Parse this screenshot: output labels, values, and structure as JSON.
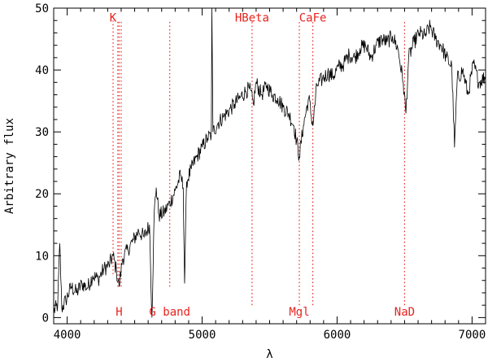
{
  "chart_data": {
    "type": "line",
    "title": "",
    "xlabel": "λ",
    "ylabel": "Arbitrary flux",
    "xlim": [
      3900,
      7100
    ],
    "ylim": [
      -1,
      50
    ],
    "x_ticks": [
      4000,
      5000,
      6000,
      7000
    ],
    "x_tick_labels": [
      "4000",
      "5000",
      "6000",
      "7000"
    ],
    "y_ticks": [
      0,
      10,
      20,
      30,
      40,
      50
    ],
    "y_tick_labels": [
      "0",
      "10",
      "20",
      "30",
      "40",
      "50"
    ],
    "grid": false,
    "series": [
      {
        "color": "#000000",
        "points": [
          [
            3900,
            1.0
          ],
          [
            3930,
            2.0
          ],
          [
            3945,
            12.0
          ],
          [
            3960,
            1.5
          ],
          [
            3990,
            2.8
          ],
          [
            4030,
            5.0
          ],
          [
            4070,
            4.0
          ],
          [
            4110,
            5.5
          ],
          [
            4150,
            4.8
          ],
          [
            4190,
            6.8
          ],
          [
            4230,
            6.2
          ],
          [
            4270,
            7.8
          ],
          [
            4310,
            8.5
          ],
          [
            4340,
            10.0
          ],
          [
            4365,
            7.5
          ],
          [
            4385,
            5.0
          ],
          [
            4410,
            9.5
          ],
          [
            4450,
            11.0
          ],
          [
            4490,
            12.5
          ],
          [
            4530,
            14.0
          ],
          [
            4570,
            13.0
          ],
          [
            4610,
            15.0
          ],
          [
            4628,
            0.0
          ],
          [
            4645,
            17.0
          ],
          [
            4660,
            21.0
          ],
          [
            4680,
            16.5
          ],
          [
            4720,
            17.0
          ],
          [
            4760,
            18.5
          ],
          [
            4800,
            20.5
          ],
          [
            4840,
            23.0
          ],
          [
            4860,
            21.0
          ],
          [
            4870,
            5.5
          ],
          [
            4885,
            22.0
          ],
          [
            4920,
            24.0
          ],
          [
            4960,
            26.0
          ],
          [
            5000,
            27.5
          ],
          [
            5040,
            29.0
          ],
          [
            5068,
            29.5
          ],
          [
            5072,
            50.0
          ],
          [
            5080,
            30.0
          ],
          [
            5120,
            31.5
          ],
          [
            5160,
            32.5
          ],
          [
            5200,
            33.5
          ],
          [
            5240,
            34.5
          ],
          [
            5280,
            35.5
          ],
          [
            5320,
            36.5
          ],
          [
            5350,
            37.0
          ],
          [
            5380,
            34.5
          ],
          [
            5400,
            38.0
          ],
          [
            5440,
            36.0
          ],
          [
            5480,
            37.5
          ],
          [
            5520,
            36.0
          ],
          [
            5560,
            35.5
          ],
          [
            5600,
            34.0
          ],
          [
            5640,
            33.0
          ],
          [
            5680,
            31.0
          ],
          [
            5720,
            26.0
          ],
          [
            5750,
            31.0
          ],
          [
            5790,
            35.5
          ],
          [
            5820,
            31.0
          ],
          [
            5850,
            37.5
          ],
          [
            5890,
            38.5
          ],
          [
            5930,
            39.5
          ],
          [
            5970,
            39.0
          ],
          [
            6010,
            40.5
          ],
          [
            6050,
            41.0
          ],
          [
            6090,
            42.5
          ],
          [
            6130,
            42.0
          ],
          [
            6170,
            43.5
          ],
          [
            6210,
            44.0
          ],
          [
            6250,
            42.0
          ],
          [
            6290,
            44.0
          ],
          [
            6330,
            45.0
          ],
          [
            6370,
            44.5
          ],
          [
            6410,
            45.5
          ],
          [
            6450,
            43.5
          ],
          [
            6490,
            38.0
          ],
          [
            6510,
            33.0
          ],
          [
            6530,
            42.0
          ],
          [
            6570,
            44.5
          ],
          [
            6610,
            46.0
          ],
          [
            6650,
            45.5
          ],
          [
            6690,
            47.0
          ],
          [
            6730,
            45.0
          ],
          [
            6770,
            44.0
          ],
          [
            6810,
            42.0
          ],
          [
            6850,
            40.5
          ],
          [
            6870,
            27.5
          ],
          [
            6890,
            38.5
          ],
          [
            6930,
            40.0
          ],
          [
            6970,
            36.0
          ],
          [
            7010,
            41.0
          ],
          [
            7050,
            38.0
          ],
          [
            7100,
            39.0
          ]
        ]
      }
    ],
    "markers": [
      {
        "x": 4340,
        "label": "K",
        "label_y": 48.5,
        "y_from": 7,
        "y_to": 48
      },
      {
        "x": 4375,
        "label": "",
        "label_y": 48.5,
        "y_from": 5,
        "y_to": 48
      },
      {
        "x": 4400,
        "label": "",
        "label_y": 48.5,
        "y_from": 5,
        "y_to": 48
      },
      {
        "x": 4385,
        "label": "H",
        "label_y": 1.0,
        "y_from": 5,
        "y_to": 48
      },
      {
        "x": 4760,
        "label": "G band",
        "label_y": 1.0,
        "y_from": 5,
        "y_to": 48
      },
      {
        "x": 5370,
        "label": "HBeta",
        "label_y": 48.5,
        "y_from": 2,
        "y_to": 48
      },
      {
        "x": 5720,
        "label": "Mgl",
        "label_y": 1.0,
        "y_from": 2,
        "y_to": 48
      },
      {
        "x": 5820,
        "label": "CaFe",
        "label_y": 48.5,
        "y_from": 2,
        "y_to": 48
      },
      {
        "x": 6500,
        "label": "NaD",
        "label_y": 1.0,
        "y_from": 2,
        "y_to": 48
      }
    ]
  }
}
